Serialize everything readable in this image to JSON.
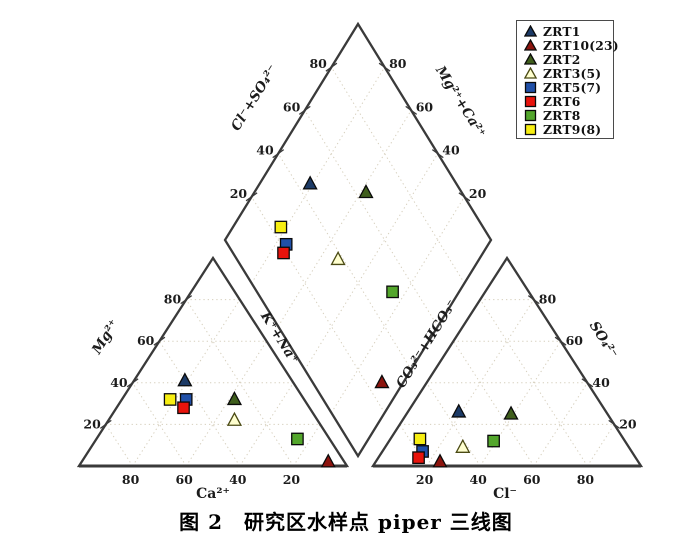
{
  "caption": {
    "text": "图 2　研究区水样点 piper 三线图"
  },
  "chart_data": {
    "type": "piper-trilinear",
    "units": "percent of meq/L",
    "tick_values": [
      20,
      40,
      60,
      80
    ],
    "axis_labels": {
      "cation_bottom": "Ca²⁺",
      "cation_left": "Mg²⁺",
      "anion_bottom": "Cl⁻",
      "anion_right": "SO₄²⁻",
      "diamond_upper_left": "Cl⁻+SO₄²⁻",
      "diamond_upper_right": "Mg²⁺+Ca²⁺",
      "diamond_lower_left": "K⁺+Na⁺",
      "diamond_lower_right": "CO₃²⁻+HCO₃⁻"
    },
    "colors": {
      "axis": "#3a3a3a",
      "grid": "#d6cfbd",
      "text": "#1c1c1c",
      "background": "#ffffff"
    },
    "legend_position": "top-right",
    "samples": [
      {
        "name": "ZRT1",
        "marker": "triangle",
        "fill": "#1c3a66",
        "stroke": "#0a0a0a",
        "cations": {
          "ca": 40,
          "mg": 41,
          "na_k": 19
        },
        "anions": {
          "cl": 19,
          "so4": 26,
          "hco3_co3": 55
        }
      },
      {
        "name": "ZRT10(23)",
        "marker": "triangle",
        "fill": "#8c140e",
        "stroke": "#0a0a0a",
        "cations": {
          "ca": 6,
          "mg": 2,
          "na_k": 92
        },
        "anions": {
          "cl": 24,
          "so4": 2,
          "hco3_co3": 74
        }
      },
      {
        "name": "ZRT2",
        "marker": "triangle",
        "fill": "#3f5e1c",
        "stroke": "#0a0a0a",
        "cations": {
          "ca": 26,
          "mg": 32,
          "na_k": 42
        },
        "anions": {
          "cl": 39,
          "so4": 25,
          "hco3_co3": 36
        }
      },
      {
        "name": "ZRT3(5)",
        "marker": "triangle",
        "fill": "#ffffcf",
        "stroke": "#4a4a14",
        "cations": {
          "ca": 31,
          "mg": 22,
          "na_k": 47
        },
        "anions": {
          "cl": 29,
          "so4": 9,
          "hco3_co3": 62
        }
      },
      {
        "name": "ZRT5(7)",
        "marker": "square",
        "fill": "#2050a8",
        "stroke": "#0a0a0a",
        "cations": {
          "ca": 44,
          "mg": 32,
          "na_k": 24
        },
        "anions": {
          "cl": 15,
          "so4": 7,
          "hco3_co3": 78
        }
      },
      {
        "name": "ZRT6",
        "marker": "square",
        "fill": "#e8130c",
        "stroke": "#0a0a0a",
        "cations": {
          "ca": 47,
          "mg": 28,
          "na_k": 25
        },
        "anions": {
          "cl": 15,
          "so4": 4,
          "hco3_co3": 81
        }
      },
      {
        "name": "ZRT8",
        "marker": "square",
        "fill": "#53a62c",
        "stroke": "#0a0a0a",
        "cations": {
          "ca": 12,
          "mg": 13,
          "na_k": 75
        },
        "anions": {
          "cl": 39,
          "so4": 12,
          "hco3_co3": 49
        }
      },
      {
        "name": "ZRT9(8)",
        "marker": "square",
        "fill": "#f7ee12",
        "stroke": "#0a0a0a",
        "cations": {
          "ca": 50,
          "mg": 32,
          "na_k": 18
        },
        "anions": {
          "cl": 11,
          "so4": 13,
          "hco3_co3": 76
        }
      }
    ]
  }
}
